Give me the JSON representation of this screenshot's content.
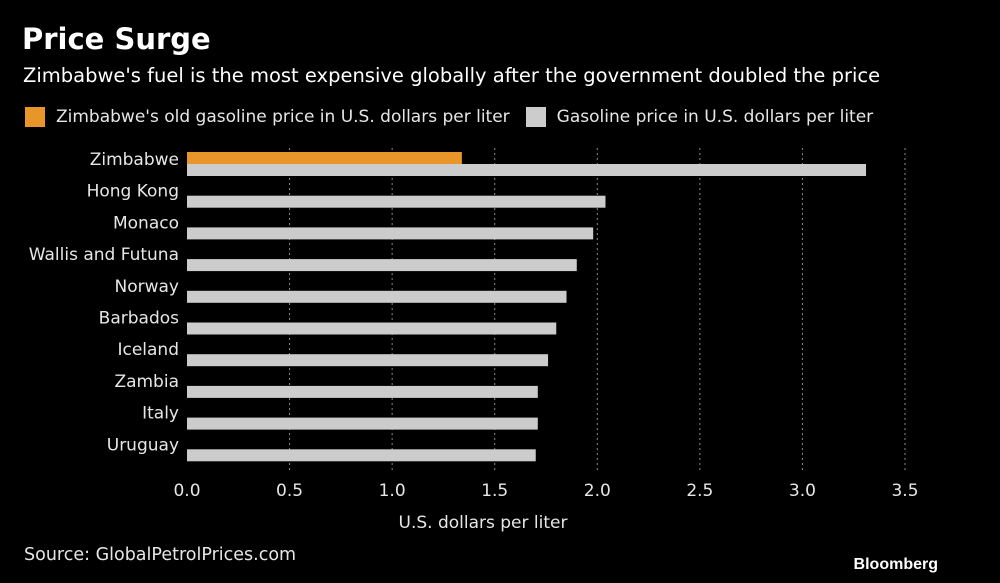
{
  "chart_data": {
    "type": "bar",
    "orientation": "horizontal",
    "title": "Price Surge",
    "subtitle": "Zimbabwe's fuel is the most expensive globally after the government doubled the price",
    "categories": [
      "Zimbabwe",
      "Hong Kong",
      "Monaco",
      "Wallis and Futuna",
      "Norway",
      "Barbados",
      "Iceland",
      "Zambia",
      "Italy",
      "Uruguay"
    ],
    "series": [
      {
        "name": "Zimbabwe's old gasoline price in U.S. dollars per liter",
        "color": "#e8962a",
        "values": [
          1.34,
          null,
          null,
          null,
          null,
          null,
          null,
          null,
          null,
          null
        ]
      },
      {
        "name": "Gasoline price in U.S. dollars per liter",
        "color": "#cccccc",
        "values": [
          3.31,
          2.04,
          1.98,
          1.9,
          1.85,
          1.8,
          1.76,
          1.71,
          1.71,
          1.7
        ]
      }
    ],
    "xlabel": "U.S. dollars per liter",
    "ylabel": "",
    "xlim": [
      0,
      3.5
    ],
    "xticks": [
      "0.0",
      "0.5",
      "1.0",
      "1.5",
      "2.0",
      "2.5",
      "3.0",
      "3.5"
    ],
    "grid": "vertical dotted",
    "legend_position": "top-left",
    "source": "Source: GlobalPetrolPrices.com",
    "brand": "Bloomberg"
  }
}
